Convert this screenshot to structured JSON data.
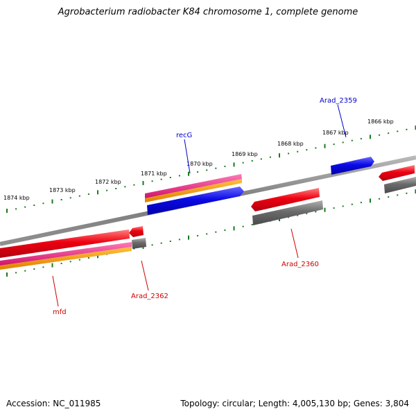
{
  "title": "Agrobacterium radiobacter K84 chromosome 1, complete genome",
  "accession": "Accession: NC_011985",
  "summary": "Topology: circular; Length: 4,005,130 bp; Genes: 3,804",
  "ticks": [
    "1866 kbp",
    "1867 kbp",
    "1868 kbp",
    "1869 kbp",
    "1870 kbp",
    "1871 kbp",
    "1872 kbp",
    "1873 kbp",
    "1874 kbp"
  ],
  "gene_labels": {
    "arad_2359": "Arad_2359",
    "recg": "recG",
    "arad_2360": "Arad_2360",
    "arad_2362": "Arad_2362",
    "mfd": "mfd"
  },
  "colors": {
    "backbone": "#808080",
    "tick": "#1a7a1a",
    "red": "#e8001a",
    "blue": "#0000e0",
    "gray": "#606060",
    "magenta": "#e8207a",
    "orange": "#f59a00",
    "label_red": "#cc0000",
    "label_blue": "#0000cc"
  }
}
